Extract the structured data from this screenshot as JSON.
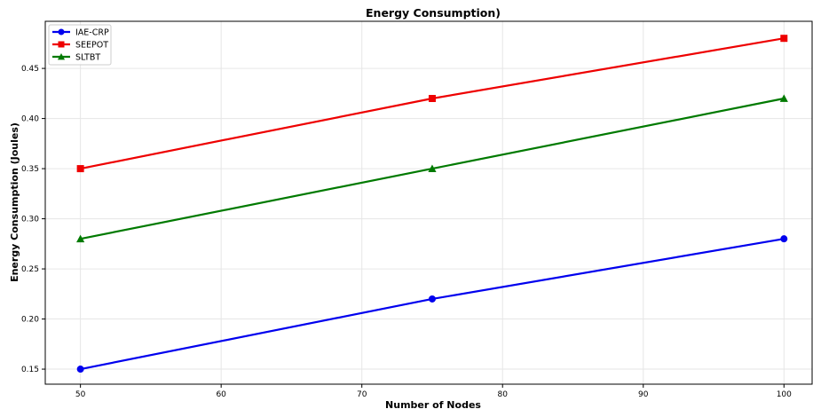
{
  "chart_data": {
    "type": "line",
    "title": "Energy Consumption)",
    "xlabel": "Number of Nodes",
    "ylabel": "Energy Consumption (Joules)",
    "x": [
      50,
      75,
      100
    ],
    "xlim": [
      47.5,
      102
    ],
    "ylim": [
      0.135,
      0.497
    ],
    "xticks": [
      50,
      60,
      70,
      80,
      90,
      100
    ],
    "xtick_labels": [
      "50",
      "60",
      "70",
      "80",
      "90",
      "100"
    ],
    "yticks": [
      0.15,
      0.2,
      0.25,
      0.3,
      0.35,
      0.4,
      0.45
    ],
    "ytick_labels": [
      "0.15",
      "0.20",
      "0.25",
      "0.30",
      "0.35",
      "0.40",
      "0.45"
    ],
    "grid": true,
    "legend_position": "top-left",
    "series": [
      {
        "name": "IAE-CRP",
        "values": [
          0.15,
          0.22,
          0.28
        ],
        "color": "#0000ee",
        "marker": "circle"
      },
      {
        "name": "SEEPOT",
        "values": [
          0.35,
          0.42,
          0.48
        ],
        "color": "#ee0000",
        "marker": "square"
      },
      {
        "name": "SLTBT",
        "values": [
          0.28,
          0.35,
          0.42
        ],
        "color": "#007a00",
        "marker": "triangle"
      }
    ]
  }
}
